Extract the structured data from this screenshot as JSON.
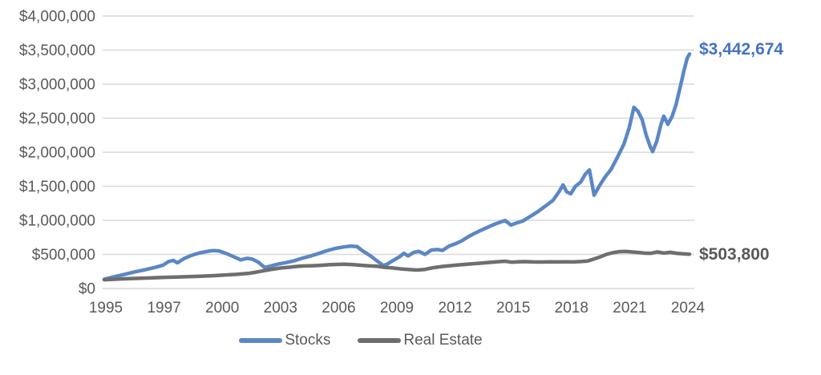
{
  "chart_data": {
    "type": "line",
    "title": "",
    "grid": "horizontal",
    "legend_position": "bottom",
    "colors": {
      "stocks_line": "#5b87c5",
      "stocks_label_text": "#4472c4",
      "real_estate_line": "#6e6e6e",
      "axis_text": "#595959",
      "gridline": "#d9d9d9",
      "background": "#ffffff"
    },
    "y_axis": {
      "min": 0,
      "max": 4000000,
      "tick_values": [
        0,
        500000,
        1000000,
        1500000,
        2000000,
        2500000,
        3000000,
        3500000,
        4000000
      ],
      "ticks": [
        "$0",
        "$500,000",
        "$1,000,000",
        "$1,500,000",
        "$2,000,000",
        "$2,500,000",
        "$3,000,000",
        "$3,500,000",
        "$4,000,000"
      ]
    },
    "x_axis": {
      "ticks": [
        "1995",
        "1997",
        "2000",
        "2003",
        "2006",
        "2009",
        "2012",
        "2015",
        "2018",
        "2021",
        "2024"
      ]
    },
    "series": [
      {
        "name": "Stocks",
        "color": "#5b87c5",
        "end_label": "$3,442,674",
        "end_value": 3442674,
        "points": [
          [
            0.0,
            135000
          ],
          [
            0.016,
            170000
          ],
          [
            0.034,
            205000
          ],
          [
            0.052,
            243000
          ],
          [
            0.068,
            272000
          ],
          [
            0.085,
            305000
          ],
          [
            0.1,
            340000
          ],
          [
            0.11,
            395000
          ],
          [
            0.118,
            412000
          ],
          [
            0.125,
            376000
          ],
          [
            0.137,
            442000
          ],
          [
            0.151,
            492000
          ],
          [
            0.164,
            524000
          ],
          [
            0.175,
            542000
          ],
          [
            0.186,
            556000
          ],
          [
            0.196,
            552000
          ],
          [
            0.208,
            515000
          ],
          [
            0.222,
            462000
          ],
          [
            0.233,
            420000
          ],
          [
            0.244,
            442000
          ],
          [
            0.253,
            430000
          ],
          [
            0.263,
            388000
          ],
          [
            0.274,
            308000
          ],
          [
            0.285,
            330000
          ],
          [
            0.297,
            358000
          ],
          [
            0.311,
            380000
          ],
          [
            0.325,
            408000
          ],
          [
            0.34,
            448000
          ],
          [
            0.353,
            478000
          ],
          [
            0.367,
            515000
          ],
          [
            0.381,
            555000
          ],
          [
            0.395,
            588000
          ],
          [
            0.408,
            608000
          ],
          [
            0.421,
            622000
          ],
          [
            0.432,
            615000
          ],
          [
            0.441,
            555000
          ],
          [
            0.455,
            478000
          ],
          [
            0.466,
            405000
          ],
          [
            0.477,
            335000
          ],
          [
            0.484,
            360000
          ],
          [
            0.493,
            408000
          ],
          [
            0.504,
            462000
          ],
          [
            0.512,
            515000
          ],
          [
            0.519,
            478000
          ],
          [
            0.529,
            530000
          ],
          [
            0.538,
            545000
          ],
          [
            0.548,
            500000
          ],
          [
            0.559,
            565000
          ],
          [
            0.57,
            572000
          ],
          [
            0.578,
            558000
          ],
          [
            0.589,
            622000
          ],
          [
            0.6,
            655000
          ],
          [
            0.611,
            700000
          ],
          [
            0.622,
            760000
          ],
          [
            0.633,
            810000
          ],
          [
            0.644,
            855000
          ],
          [
            0.655,
            898000
          ],
          [
            0.666,
            940000
          ],
          [
            0.677,
            975000
          ],
          [
            0.685,
            998000
          ],
          [
            0.695,
            930000
          ],
          [
            0.704,
            960000
          ],
          [
            0.715,
            990000
          ],
          [
            0.726,
            1048000
          ],
          [
            0.74,
            1122000
          ],
          [
            0.753,
            1205000
          ],
          [
            0.767,
            1295000
          ],
          [
            0.777,
            1420000
          ],
          [
            0.784,
            1520000
          ],
          [
            0.79,
            1420000
          ],
          [
            0.797,
            1390000
          ],
          [
            0.805,
            1500000
          ],
          [
            0.814,
            1560000
          ],
          [
            0.822,
            1680000
          ],
          [
            0.829,
            1740000
          ],
          [
            0.837,
            1370000
          ],
          [
            0.847,
            1520000
          ],
          [
            0.856,
            1640000
          ],
          [
            0.866,
            1750000
          ],
          [
            0.877,
            1930000
          ],
          [
            0.888,
            2120000
          ],
          [
            0.897,
            2360000
          ],
          [
            0.905,
            2660000
          ],
          [
            0.912,
            2600000
          ],
          [
            0.919,
            2480000
          ],
          [
            0.926,
            2250000
          ],
          [
            0.933,
            2080000
          ],
          [
            0.937,
            2010000
          ],
          [
            0.944,
            2160000
          ],
          [
            0.951,
            2400000
          ],
          [
            0.956,
            2530000
          ],
          [
            0.963,
            2410000
          ],
          [
            0.97,
            2520000
          ],
          [
            0.977,
            2700000
          ],
          [
            0.984,
            2950000
          ],
          [
            0.99,
            3180000
          ],
          [
            0.996,
            3380000
          ],
          [
            1.0,
            3442674
          ]
        ]
      },
      {
        "name": "Real Estate",
        "color": "#6e6e6e",
        "end_label": "$503,800",
        "end_value": 503800,
        "points": [
          [
            0.0,
            128000
          ],
          [
            0.021,
            136000
          ],
          [
            0.041,
            143000
          ],
          [
            0.062,
            150000
          ],
          [
            0.082,
            156000
          ],
          [
            0.103,
            163000
          ],
          [
            0.123,
            168000
          ],
          [
            0.144,
            174000
          ],
          [
            0.164,
            180000
          ],
          [
            0.185,
            187000
          ],
          [
            0.205,
            196000
          ],
          [
            0.226,
            207000
          ],
          [
            0.247,
            222000
          ],
          [
            0.26,
            240000
          ],
          [
            0.274,
            262000
          ],
          [
            0.288,
            284000
          ],
          [
            0.301,
            300000
          ],
          [
            0.315,
            310000
          ],
          [
            0.329,
            324000
          ],
          [
            0.342,
            331000
          ],
          [
            0.356,
            334000
          ],
          [
            0.37,
            340000
          ],
          [
            0.384,
            348000
          ],
          [
            0.397,
            353000
          ],
          [
            0.411,
            356000
          ],
          [
            0.425,
            349000
          ],
          [
            0.438,
            341000
          ],
          [
            0.452,
            333000
          ],
          [
            0.466,
            326000
          ],
          [
            0.479,
            310000
          ],
          [
            0.493,
            301000
          ],
          [
            0.507,
            287000
          ],
          [
            0.521,
            278000
          ],
          [
            0.534,
            271000
          ],
          [
            0.548,
            280000
          ],
          [
            0.562,
            305000
          ],
          [
            0.575,
            320000
          ],
          [
            0.589,
            332000
          ],
          [
            0.603,
            344000
          ],
          [
            0.616,
            353000
          ],
          [
            0.63,
            363000
          ],
          [
            0.644,
            372000
          ],
          [
            0.658,
            382000
          ],
          [
            0.671,
            392000
          ],
          [
            0.685,
            400000
          ],
          [
            0.696,
            386000
          ],
          [
            0.707,
            391000
          ],
          [
            0.719,
            394000
          ],
          [
            0.733,
            390000
          ],
          [
            0.747,
            388000
          ],
          [
            0.76,
            391000
          ],
          [
            0.774,
            389000
          ],
          [
            0.788,
            391000
          ],
          [
            0.801,
            389000
          ],
          [
            0.815,
            395000
          ],
          [
            0.826,
            402000
          ],
          [
            0.836,
            430000
          ],
          [
            0.847,
            462000
          ],
          [
            0.858,
            500000
          ],
          [
            0.868,
            524000
          ],
          [
            0.879,
            540000
          ],
          [
            0.89,
            543000
          ],
          [
            0.901,
            537000
          ],
          [
            0.912,
            529000
          ],
          [
            0.923,
            519000
          ],
          [
            0.934,
            516000
          ],
          [
            0.945,
            536000
          ],
          [
            0.956,
            520000
          ],
          [
            0.967,
            530000
          ],
          [
            0.978,
            516000
          ],
          [
            0.989,
            508000
          ],
          [
            1.0,
            503800
          ]
        ]
      }
    ]
  },
  "legend": {
    "stocks_label": "Stocks",
    "real_estate_label": "Real Estate"
  }
}
